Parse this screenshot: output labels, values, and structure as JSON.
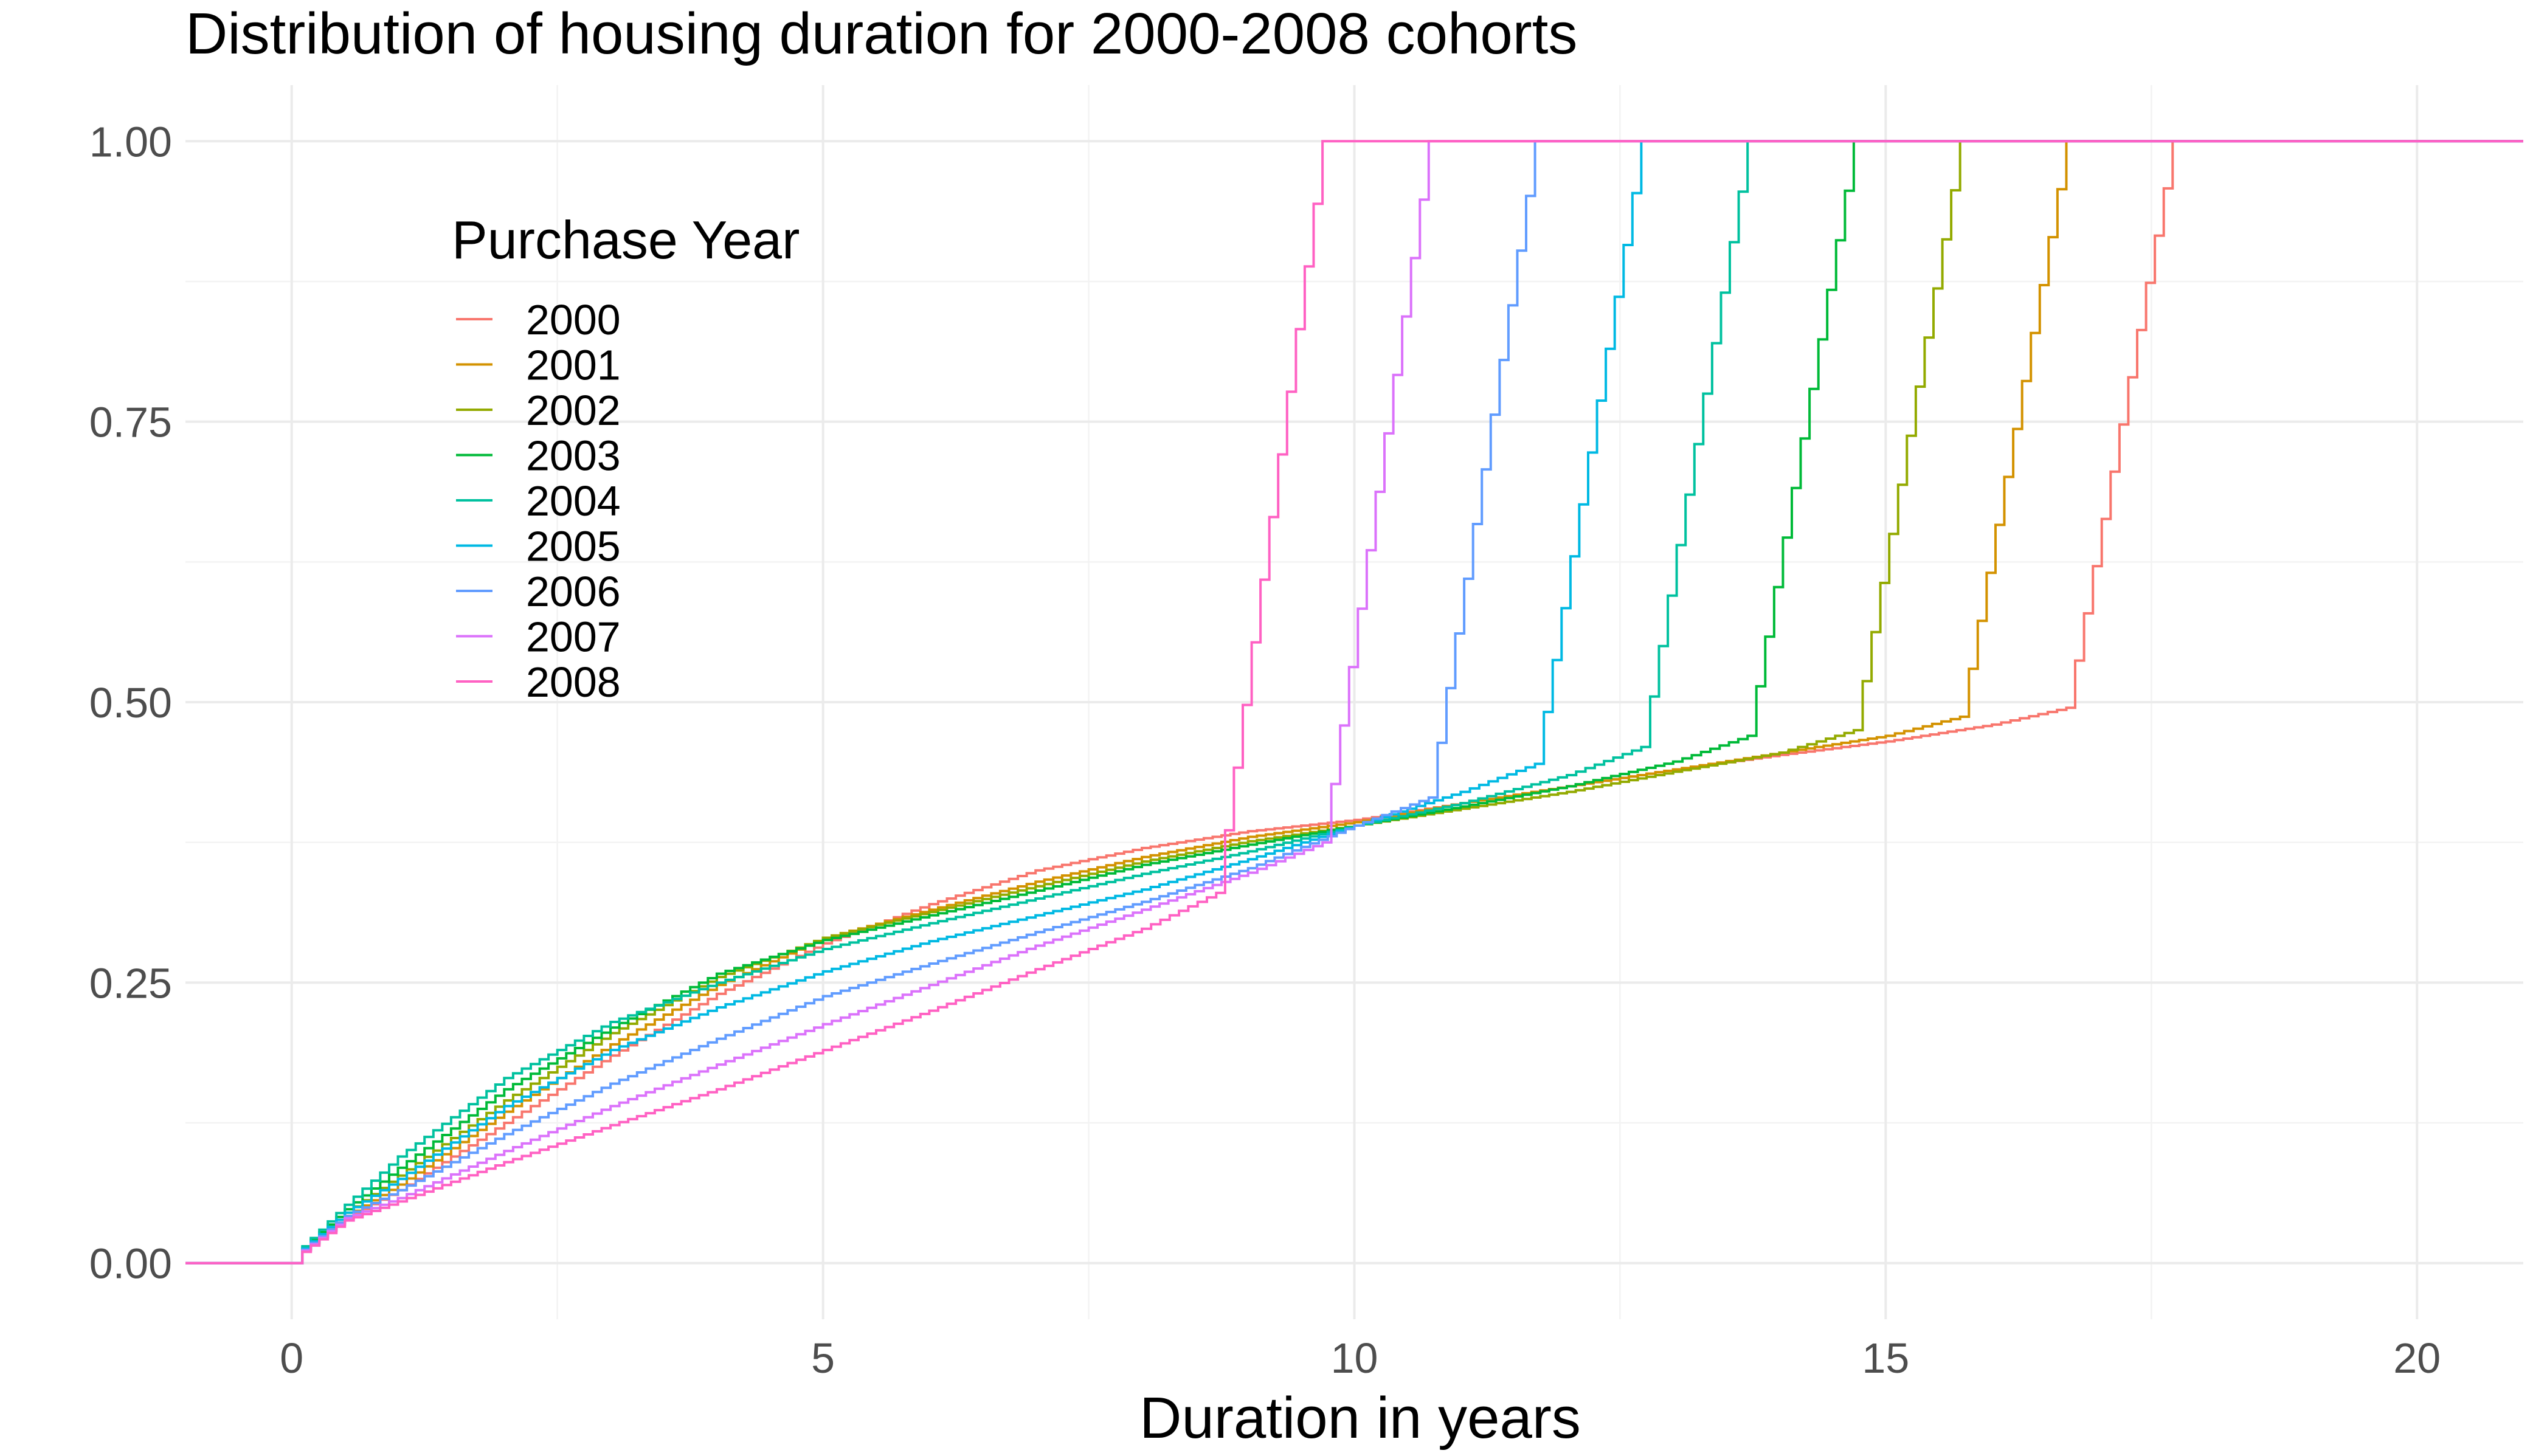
{
  "chart_data": {
    "type": "line",
    "step": true,
    "title": "Distribution of housing duration for 2000-2008 cohorts",
    "xlabel": "Duration in years",
    "ylabel": "",
    "xlim": [
      -1,
      21
    ],
    "ylim": [
      -0.05,
      1.05
    ],
    "x_ticks": [
      0,
      5,
      10,
      15,
      20
    ],
    "x_tick_labels": [
      "0",
      "5",
      "10",
      "15",
      "20"
    ],
    "y_ticks": [
      0,
      0.25,
      0.5,
      0.75,
      1
    ],
    "y_tick_labels": [
      "0.00",
      "0.25",
      "0.50",
      "0.75",
      "1.00"
    ],
    "grid": true,
    "legend": {
      "title": "Purchase Year",
      "placement": "top-left (inside plot)"
    },
    "series": [
      {
        "name": "2000",
        "color": "#F8766D",
        "x": [
          -1,
          0,
          0.1,
          0.5,
          1,
          2,
          3,
          4,
          5,
          6,
          7,
          8,
          9,
          10,
          11,
          12,
          13,
          14,
          15,
          16,
          16.7,
          17.7,
          21
        ],
        "y": [
          0,
          0,
          0.012,
          0.04,
          0.065,
          0.125,
          0.185,
          0.24,
          0.285,
          0.32,
          0.35,
          0.37,
          0.385,
          0.395,
          0.41,
          0.425,
          0.44,
          0.453,
          0.465,
          0.48,
          0.495,
          1,
          1
        ]
      },
      {
        "name": "2001",
        "color": "#D39200",
        "x": [
          -1,
          0,
          0.1,
          0.5,
          1,
          2,
          3,
          4,
          5,
          6,
          7,
          8,
          9,
          10,
          11,
          12,
          13,
          14,
          15,
          15.7,
          16.7,
          21
        ],
        "y": [
          0,
          0,
          0.012,
          0.042,
          0.07,
          0.135,
          0.195,
          0.248,
          0.29,
          0.315,
          0.34,
          0.362,
          0.38,
          0.393,
          0.41,
          0.425,
          0.44,
          0.455,
          0.47,
          0.487,
          1,
          1
        ]
      },
      {
        "name": "2002",
        "color": "#93AA00",
        "x": [
          -1,
          0,
          0.1,
          0.5,
          1,
          2,
          3,
          4,
          5,
          6,
          7,
          8,
          9,
          10,
          11,
          12,
          13,
          14,
          14.7,
          15.7,
          21
        ],
        "y": [
          0,
          0,
          0.013,
          0.045,
          0.078,
          0.145,
          0.205,
          0.255,
          0.29,
          0.313,
          0.336,
          0.358,
          0.376,
          0.39,
          0.405,
          0.42,
          0.438,
          0.455,
          0.475,
          1,
          1
        ]
      },
      {
        "name": "2003",
        "color": "#00BA38",
        "x": [
          -1,
          0,
          0.1,
          0.5,
          1,
          2,
          3,
          4,
          5,
          6,
          7,
          8,
          9,
          10,
          11,
          12,
          13,
          13.7,
          14.7,
          21
        ],
        "y": [
          0,
          0,
          0.014,
          0.048,
          0.085,
          0.155,
          0.21,
          0.258,
          0.288,
          0.31,
          0.332,
          0.355,
          0.373,
          0.39,
          0.407,
          0.425,
          0.447,
          0.47,
          1,
          1
        ]
      },
      {
        "name": "2004",
        "color": "#00C19F",
        "x": [
          -1,
          0,
          0.1,
          0.5,
          1,
          2,
          3,
          4,
          5,
          6,
          7,
          8,
          9,
          10,
          11,
          12,
          12.7,
          13.7,
          21
        ],
        "y": [
          0,
          0,
          0.015,
          0.052,
          0.095,
          0.165,
          0.215,
          0.25,
          0.28,
          0.303,
          0.325,
          0.347,
          0.367,
          0.39,
          0.41,
          0.435,
          0.46,
          1,
          1
        ]
      },
      {
        "name": "2005",
        "color": "#00B9E3",
        "x": [
          -1,
          0,
          0.1,
          0.5,
          1,
          2,
          3,
          4,
          5,
          6,
          7,
          8,
          9,
          10,
          11,
          11.7,
          12.7,
          21
        ],
        "y": [
          0,
          0,
          0.013,
          0.045,
          0.075,
          0.14,
          0.19,
          0.228,
          0.26,
          0.287,
          0.31,
          0.333,
          0.36,
          0.39,
          0.42,
          0.445,
          1,
          1
        ]
      },
      {
        "name": "2006",
        "color": "#619CFF",
        "x": [
          -1,
          0,
          0.1,
          0.5,
          1,
          2,
          3,
          4,
          5,
          6,
          7,
          8,
          9,
          10,
          10.7,
          11.7,
          21
        ],
        "y": [
          0,
          0,
          0.012,
          0.042,
          0.065,
          0.115,
          0.16,
          0.2,
          0.238,
          0.267,
          0.295,
          0.322,
          0.352,
          0.39,
          0.415,
          1,
          1
        ]
      },
      {
        "name": "2007",
        "color": "#DB72FB",
        "x": [
          -1,
          0,
          0.1,
          0.5,
          1,
          2,
          3,
          4,
          5,
          6,
          7,
          8,
          9,
          9.7,
          10.7,
          21
        ],
        "y": [
          0,
          0,
          0.011,
          0.04,
          0.058,
          0.1,
          0.14,
          0.177,
          0.213,
          0.248,
          0.283,
          0.315,
          0.348,
          0.375,
          1,
          1
        ]
      },
      {
        "name": "2008",
        "color": "#FF61C3",
        "x": [
          -1,
          0,
          0.1,
          0.5,
          1,
          2,
          3,
          4,
          5,
          6,
          7,
          8,
          8.7,
          9.7,
          21
        ],
        "y": [
          0,
          0,
          0.01,
          0.038,
          0.055,
          0.09,
          0.123,
          0.155,
          0.19,
          0.225,
          0.262,
          0.298,
          0.33,
          1,
          1
        ]
      }
    ]
  }
}
